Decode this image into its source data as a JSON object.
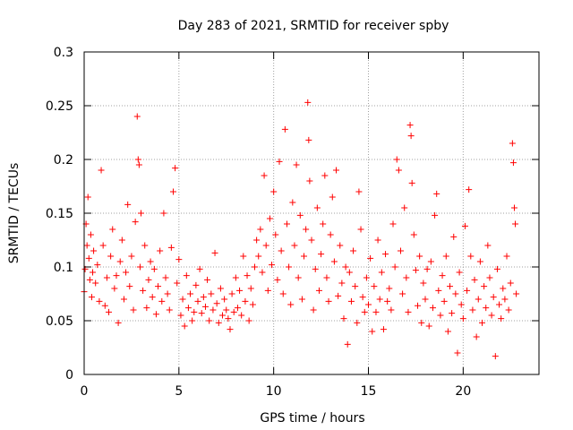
{
  "chart_data": {
    "type": "scatter",
    "title": "Day 283 of 2021, SRMTID for receiver spby",
    "xlabel": "GPS time / hours",
    "ylabel": "SRMTID / TECUs",
    "xlim": [
      0,
      24
    ],
    "ylim": [
      0,
      0.3
    ],
    "x_ticks": [
      0,
      5,
      10,
      15,
      20
    ],
    "y_ticks": [
      0,
      0.05,
      0.1,
      0.15,
      0.2,
      0.25,
      0.3
    ],
    "x_tick_labels": [
      "0",
      "5",
      "10",
      "15",
      "20"
    ],
    "y_tick_labels": [
      "0",
      "0.05",
      "0.1",
      "0.15",
      "0.2",
      "0.25",
      "0.3"
    ],
    "grid": true,
    "marker": "+",
    "series": [
      {
        "name": "SRMTID",
        "color": "#ff0000",
        "points": [
          [
            0.0,
            0.077
          ],
          [
            0.05,
            0.098
          ],
          [
            0.1,
            0.14
          ],
          [
            0.15,
            0.12
          ],
          [
            0.2,
            0.165
          ],
          [
            0.25,
            0.108
          ],
          [
            0.3,
            0.088
          ],
          [
            0.35,
            0.13
          ],
          [
            0.4,
            0.072
          ],
          [
            0.45,
            0.095
          ],
          [
            0.5,
            0.115
          ],
          [
            0.6,
            0.085
          ],
          [
            0.7,
            0.102
          ],
          [
            0.8,
            0.068
          ],
          [
            0.9,
            0.19
          ],
          [
            1.0,
            0.12
          ],
          [
            1.1,
            0.064
          ],
          [
            1.2,
            0.09
          ],
          [
            1.3,
            0.058
          ],
          [
            1.4,
            0.11
          ],
          [
            1.5,
            0.135
          ],
          [
            1.6,
            0.08
          ],
          [
            1.7,
            0.092
          ],
          [
            1.8,
            0.048
          ],
          [
            1.9,
            0.105
          ],
          [
            2.0,
            0.125
          ],
          [
            2.1,
            0.07
          ],
          [
            2.2,
            0.095
          ],
          [
            2.3,
            0.158
          ],
          [
            2.4,
            0.082
          ],
          [
            2.5,
            0.11
          ],
          [
            2.6,
            0.06
          ],
          [
            2.7,
            0.142
          ],
          [
            2.8,
            0.24
          ],
          [
            2.85,
            0.2
          ],
          [
            2.9,
            0.195
          ],
          [
            2.95,
            0.1
          ],
          [
            3.0,
            0.15
          ],
          [
            3.1,
            0.078
          ],
          [
            3.2,
            0.12
          ],
          [
            3.3,
            0.062
          ],
          [
            3.4,
            0.088
          ],
          [
            3.5,
            0.105
          ],
          [
            3.6,
            0.072
          ],
          [
            3.7,
            0.098
          ],
          [
            3.8,
            0.056
          ],
          [
            3.9,
            0.082
          ],
          [
            4.0,
            0.115
          ],
          [
            4.1,
            0.068
          ],
          [
            4.2,
            0.15
          ],
          [
            4.3,
            0.09
          ],
          [
            4.4,
            0.075
          ],
          [
            4.5,
            0.06
          ],
          [
            4.6,
            0.118
          ],
          [
            4.7,
            0.17
          ],
          [
            4.8,
            0.192
          ],
          [
            4.9,
            0.085
          ],
          [
            5.0,
            0.107
          ],
          [
            5.1,
            0.055
          ],
          [
            5.2,
            0.07
          ],
          [
            5.3,
            0.045
          ],
          [
            5.4,
            0.092
          ],
          [
            5.5,
            0.062
          ],
          [
            5.6,
            0.075
          ],
          [
            5.7,
            0.05
          ],
          [
            5.8,
            0.058
          ],
          [
            5.9,
            0.083
          ],
          [
            6.0,
            0.068
          ],
          [
            6.1,
            0.098
          ],
          [
            6.2,
            0.057
          ],
          [
            6.3,
            0.072
          ],
          [
            6.4,
            0.063
          ],
          [
            6.5,
            0.088
          ],
          [
            6.6,
            0.05
          ],
          [
            6.7,
            0.075
          ],
          [
            6.8,
            0.06
          ],
          [
            6.9,
            0.113
          ],
          [
            7.0,
            0.066
          ],
          [
            7.1,
            0.048
          ],
          [
            7.2,
            0.08
          ],
          [
            7.3,
            0.055
          ],
          [
            7.4,
            0.07
          ],
          [
            7.5,
            0.06
          ],
          [
            7.6,
            0.052
          ],
          [
            7.7,
            0.042
          ],
          [
            7.8,
            0.075
          ],
          [
            7.9,
            0.058
          ],
          [
            8.0,
            0.09
          ],
          [
            8.1,
            0.062
          ],
          [
            8.2,
            0.078
          ],
          [
            8.3,
            0.055
          ],
          [
            8.4,
            0.11
          ],
          [
            8.5,
            0.068
          ],
          [
            8.6,
            0.092
          ],
          [
            8.7,
            0.05
          ],
          [
            8.8,
            0.08
          ],
          [
            8.9,
            0.065
          ],
          [
            9.0,
            0.1
          ],
          [
            9.1,
            0.125
          ],
          [
            9.2,
            0.11
          ],
          [
            9.3,
            0.135
          ],
          [
            9.4,
            0.095
          ],
          [
            9.5,
            0.185
          ],
          [
            9.6,
            0.12
          ],
          [
            9.7,
            0.078
          ],
          [
            9.8,
            0.145
          ],
          [
            9.9,
            0.102
          ],
          [
            10.0,
            0.17
          ],
          [
            10.1,
            0.13
          ],
          [
            10.2,
            0.088
          ],
          [
            10.3,
            0.198
          ],
          [
            10.4,
            0.115
          ],
          [
            10.5,
            0.075
          ],
          [
            10.6,
            0.228
          ],
          [
            10.7,
            0.14
          ],
          [
            10.8,
            0.1
          ],
          [
            10.9,
            0.065
          ],
          [
            11.0,
            0.16
          ],
          [
            11.1,
            0.12
          ],
          [
            11.2,
            0.195
          ],
          [
            11.3,
            0.09
          ],
          [
            11.4,
            0.148
          ],
          [
            11.5,
            0.07
          ],
          [
            11.6,
            0.11
          ],
          [
            11.7,
            0.135
          ],
          [
            11.8,
            0.253
          ],
          [
            11.85,
            0.218
          ],
          [
            11.9,
            0.18
          ],
          [
            12.0,
            0.125
          ],
          [
            12.1,
            0.06
          ],
          [
            12.2,
            0.098
          ],
          [
            12.3,
            0.155
          ],
          [
            12.4,
            0.078
          ],
          [
            12.5,
            0.112
          ],
          [
            12.6,
            0.14
          ],
          [
            12.7,
            0.185
          ],
          [
            12.8,
            0.09
          ],
          [
            12.9,
            0.068
          ],
          [
            13.0,
            0.13
          ],
          [
            13.1,
            0.165
          ],
          [
            13.2,
            0.105
          ],
          [
            13.3,
            0.19
          ],
          [
            13.4,
            0.073
          ],
          [
            13.5,
            0.12
          ],
          [
            13.6,
            0.085
          ],
          [
            13.7,
            0.052
          ],
          [
            13.8,
            0.1
          ],
          [
            13.9,
            0.028
          ],
          [
            14.0,
            0.095
          ],
          [
            14.1,
            0.068
          ],
          [
            14.2,
            0.115
          ],
          [
            14.3,
            0.082
          ],
          [
            14.4,
            0.048
          ],
          [
            14.5,
            0.17
          ],
          [
            14.6,
            0.135
          ],
          [
            14.7,
            0.072
          ],
          [
            14.8,
            0.058
          ],
          [
            14.9,
            0.09
          ],
          [
            15.0,
            0.065
          ],
          [
            15.1,
            0.108
          ],
          [
            15.2,
            0.04
          ],
          [
            15.3,
            0.082
          ],
          [
            15.4,
            0.058
          ],
          [
            15.5,
            0.125
          ],
          [
            15.6,
            0.07
          ],
          [
            15.7,
            0.095
          ],
          [
            15.8,
            0.042
          ],
          [
            15.9,
            0.112
          ],
          [
            16.0,
            0.068
          ],
          [
            16.1,
            0.08
          ],
          [
            16.2,
            0.06
          ],
          [
            16.3,
            0.14
          ],
          [
            16.4,
            0.1
          ],
          [
            16.5,
            0.2
          ],
          [
            16.6,
            0.19
          ],
          [
            16.7,
            0.115
          ],
          [
            16.8,
            0.075
          ],
          [
            16.9,
            0.155
          ],
          [
            17.0,
            0.09
          ],
          [
            17.1,
            0.058
          ],
          [
            17.2,
            0.232
          ],
          [
            17.25,
            0.222
          ],
          [
            17.3,
            0.178
          ],
          [
            17.4,
            0.13
          ],
          [
            17.5,
            0.097
          ],
          [
            17.6,
            0.064
          ],
          [
            17.7,
            0.11
          ],
          [
            17.8,
            0.048
          ],
          [
            17.9,
            0.085
          ],
          [
            18.0,
            0.07
          ],
          [
            18.1,
            0.098
          ],
          [
            18.2,
            0.045
          ],
          [
            18.3,
            0.105
          ],
          [
            18.4,
            0.062
          ],
          [
            18.5,
            0.148
          ],
          [
            18.6,
            0.168
          ],
          [
            18.7,
            0.078
          ],
          [
            18.8,
            0.055
          ],
          [
            18.9,
            0.092
          ],
          [
            19.0,
            0.068
          ],
          [
            19.1,
            0.11
          ],
          [
            19.2,
            0.04
          ],
          [
            19.3,
            0.082
          ],
          [
            19.4,
            0.057
          ],
          [
            19.5,
            0.128
          ],
          [
            19.6,
            0.075
          ],
          [
            19.7,
            0.02
          ],
          [
            19.8,
            0.095
          ],
          [
            19.9,
            0.065
          ],
          [
            20.0,
            0.052
          ],
          [
            20.1,
            0.138
          ],
          [
            20.2,
            0.078
          ],
          [
            20.3,
            0.172
          ],
          [
            20.4,
            0.11
          ],
          [
            20.5,
            0.06
          ],
          [
            20.6,
            0.088
          ],
          [
            20.7,
            0.035
          ],
          [
            20.8,
            0.07
          ],
          [
            20.9,
            0.105
          ],
          [
            21.0,
            0.048
          ],
          [
            21.1,
            0.082
          ],
          [
            21.2,
            0.062
          ],
          [
            21.3,
            0.12
          ],
          [
            21.4,
            0.09
          ],
          [
            21.5,
            0.055
          ],
          [
            21.6,
            0.072
          ],
          [
            21.7,
            0.017
          ],
          [
            21.8,
            0.098
          ],
          [
            21.9,
            0.065
          ],
          [
            22.0,
            0.052
          ],
          [
            22.1,
            0.08
          ],
          [
            22.2,
            0.07
          ],
          [
            22.3,
            0.11
          ],
          [
            22.4,
            0.06
          ],
          [
            22.5,
            0.085
          ],
          [
            22.6,
            0.215
          ],
          [
            22.65,
            0.197
          ],
          [
            22.7,
            0.155
          ],
          [
            22.75,
            0.14
          ],
          [
            22.8,
            0.075
          ]
        ]
      }
    ]
  }
}
